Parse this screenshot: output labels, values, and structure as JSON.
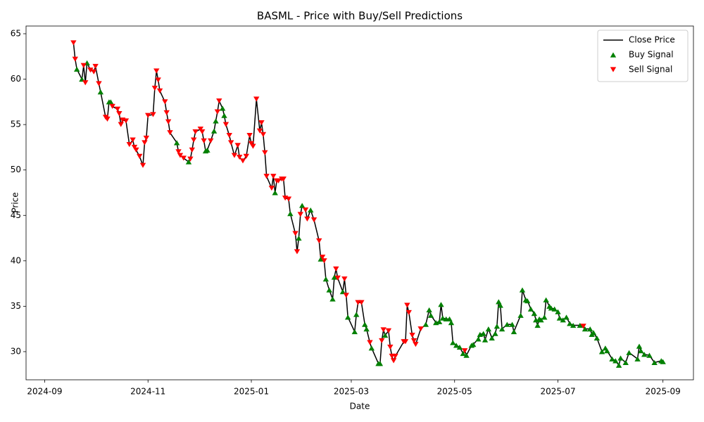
{
  "chart_data": {
    "type": "line",
    "title": "BASML - Price with Buy/Sell Predictions",
    "x_label": "Date",
    "y_label": "Price",
    "xlim": [
      19956,
      20350
    ],
    "xticks": [
      {
        "value": 19967,
        "label": "2024-09"
      },
      {
        "value": 20028,
        "label": "2024-11"
      },
      {
        "value": 20089,
        "label": "2025-01"
      },
      {
        "value": 20148,
        "label": "2025-03"
      },
      {
        "value": 20209,
        "label": "2025-05"
      },
      {
        "value": 20270,
        "label": "2025-07"
      },
      {
        "value": 20332,
        "label": "2025-09"
      }
    ],
    "ylim": [
      26.9,
      65.85
    ],
    "yticks": [
      30,
      35,
      40,
      45,
      50,
      55,
      60,
      65
    ],
    "grid": false,
    "legend": "upper right",
    "series": [
      {
        "name": "Close Price",
        "type": "line",
        "color": "#000000",
        "x": [
          19984,
          19985,
          19986,
          19989,
          19990,
          19991,
          19992,
          19994,
          19996,
          19997,
          19999,
          20000,
          20003,
          20004,
          20005,
          20006,
          20007,
          20010,
          20011,
          20012,
          20013,
          20015,
          20017,
          20019,
          20020,
          20021,
          20023,
          20025,
          20026,
          20027,
          20028,
          20031,
          20032,
          20033,
          20034,
          20035,
          20038,
          20039,
          20040,
          20041,
          20045,
          20046,
          20047,
          20049,
          20052,
          20053,
          20054,
          20055,
          20056,
          20059,
          20060,
          20061,
          20062,
          20063,
          20065,
          20067,
          20068,
          20069,
          20070,
          20072,
          20073,
          20074,
          20076,
          20077,
          20079,
          20081,
          20082,
          20084,
          20086,
          20088,
          20089,
          20090,
          20092,
          20094,
          20095,
          20096,
          20097,
          20098,
          20101,
          20102,
          20103,
          20104,
          20105,
          20107,
          20108,
          20109,
          20111,
          20112,
          20115,
          20116,
          20117,
          20118,
          20119,
          20121,
          20122,
          20124,
          20126,
          20129,
          20130,
          20131,
          20132,
          20133,
          20135,
          20137,
          20138,
          20139,
          20140,
          20143,
          20144,
          20145,
          20146,
          20150,
          20151,
          20152,
          20154,
          20156,
          20157,
          20159,
          20160,
          20164,
          20165,
          20166,
          20167,
          20168,
          20170,
          20171,
          20172,
          20173,
          20174,
          20179,
          20180,
          20181,
          20182,
          20184,
          20185,
          20186,
          20189,
          20192,
          20194,
          20195,
          20198,
          20200,
          20201,
          20202,
          20204,
          20206,
          20207,
          20208,
          20210,
          20212,
          20214,
          20215,
          20216,
          20219,
          20220,
          20223,
          20224,
          20226,
          20227,
          20229,
          20231,
          20233,
          20234,
          20235,
          20236,
          20237,
          20240,
          20243,
          20244,
          20248,
          20249,
          20251,
          20252,
          20254,
          20256,
          20257,
          20258,
          20259,
          20260,
          20262,
          20263,
          20265,
          20266,
          20268,
          20270,
          20271,
          20273,
          20275,
          20277,
          20279,
          20283,
          20285,
          20286,
          20289,
          20290,
          20291,
          20293,
          20296,
          20298,
          20299,
          20302,
          20304,
          20306,
          20307,
          20310,
          20312,
          20317,
          20318,
          20319,
          20321,
          20324,
          20327,
          20331,
          20332
        ],
        "values": [
          64.0,
          62.2,
          61.1,
          60.0,
          61.5,
          59.6,
          61.8,
          61.0,
          60.8,
          61.4,
          59.5,
          58.6,
          55.8,
          55.6,
          57.5,
          57.5,
          57.0,
          56.7,
          56.2,
          55.0,
          55.5,
          55.4,
          52.8,
          53.3,
          52.5,
          52.2,
          51.5,
          50.5,
          53.0,
          53.5,
          56.0,
          56.1,
          59.0,
          60.9,
          59.9,
          58.7,
          57.5,
          56.3,
          55.3,
          54.1,
          53.0,
          52.0,
          51.6,
          51.3,
          50.9,
          51.2,
          52.2,
          53.3,
          54.2,
          54.5,
          54.2,
          53.2,
          52.1,
          52.2,
          53.2,
          54.3,
          55.4,
          56.4,
          57.6,
          56.8,
          56.0,
          55.0,
          53.8,
          53.0,
          51.6,
          52.7,
          51.4,
          51.0,
          51.5,
          53.8,
          52.9,
          52.6,
          57.8,
          54.3,
          55.2,
          53.9,
          51.9,
          49.3,
          48.0,
          49.3,
          47.5,
          48.8,
          48.8,
          49.0,
          49.0,
          46.9,
          46.8,
          45.2,
          43.0,
          41.0,
          42.5,
          45.1,
          46.1,
          45.6,
          44.6,
          45.6,
          44.5,
          42.2,
          40.2,
          40.4,
          40.0,
          38.0,
          36.8,
          35.8,
          38.2,
          39.1,
          38.1,
          36.6,
          38.0,
          36.2,
          33.8,
          32.2,
          34.1,
          35.4,
          35.4,
          33.0,
          32.5,
          31.0,
          30.4,
          28.7,
          28.7,
          31.2,
          32.4,
          31.8,
          32.3,
          30.5,
          29.5,
          29.0,
          29.5,
          31.1,
          31.1,
          35.1,
          34.3,
          31.8,
          31.2,
          30.8,
          32.5,
          33.0,
          34.6,
          34.0,
          33.2,
          33.3,
          35.2,
          33.7,
          33.6,
          33.6,
          33.2,
          31.0,
          30.7,
          30.5,
          29.8,
          30.1,
          29.6,
          30.7,
          30.8,
          31.4,
          31.9,
          32.0,
          31.3,
          32.5,
          31.5,
          32.0,
          32.8,
          35.5,
          35.1,
          32.5,
          33.0,
          33.0,
          32.2,
          34.0,
          36.8,
          35.7,
          35.6,
          34.7,
          34.2,
          33.5,
          32.9,
          33.6,
          33.5,
          33.8,
          35.7,
          35.0,
          34.8,
          34.7,
          34.4,
          33.7,
          33.5,
          33.8,
          33.1,
          32.9,
          32.9,
          32.8,
          32.5,
          32.5,
          31.9,
          32.1,
          31.5,
          30.0,
          30.4,
          30.1,
          29.2,
          29.0,
          28.5,
          29.3,
          28.8,
          29.9,
          29.2,
          30.6,
          30.1,
          29.7,
          29.6,
          28.8,
          29.0,
          28.9
        ]
      },
      {
        "name": "Buy Signal",
        "type": "scatter",
        "marker": "^",
        "color": "#008000",
        "x": [
          19986,
          19989,
          19992,
          20000,
          20005,
          20006,
          20045,
          20052,
          20062,
          20063,
          20067,
          20068,
          20072,
          20073,
          20103,
          20112,
          20117,
          20119,
          20124,
          20130,
          20133,
          20135,
          20137,
          20138,
          20143,
          20146,
          20150,
          20151,
          20156,
          20157,
          20160,
          20164,
          20165,
          20168,
          20192,
          20194,
          20195,
          20198,
          20200,
          20201,
          20202,
          20204,
          20206,
          20207,
          20208,
          20210,
          20212,
          20214,
          20216,
          20219,
          20220,
          20223,
          20224,
          20226,
          20227,
          20229,
          20231,
          20233,
          20234,
          20235,
          20236,
          20237,
          20240,
          20243,
          20244,
          20248,
          20249,
          20251,
          20252,
          20254,
          20256,
          20257,
          20258,
          20259,
          20260,
          20262,
          20263,
          20265,
          20266,
          20268,
          20270,
          20271,
          20273,
          20275,
          20277,
          20279,
          20283,
          20286,
          20289,
          20290,
          20291,
          20293,
          20296,
          20298,
          20299,
          20302,
          20304,
          20306,
          20307,
          20310,
          20312,
          20317,
          20318,
          20319,
          20321,
          20324,
          20327,
          20331,
          20332
        ],
        "values": [
          61.1,
          60.0,
          61.8,
          58.6,
          57.5,
          57.5,
          53.0,
          50.9,
          52.1,
          52.2,
          54.3,
          55.4,
          56.8,
          56.0,
          47.5,
          45.2,
          42.5,
          46.1,
          45.6,
          40.2,
          38.0,
          36.8,
          35.8,
          38.2,
          36.6,
          33.8,
          32.2,
          34.1,
          33.0,
          32.5,
          30.4,
          28.7,
          28.7,
          31.8,
          33.0,
          34.6,
          34.0,
          33.2,
          33.3,
          35.2,
          33.7,
          33.6,
          33.6,
          33.2,
          31.0,
          30.7,
          30.5,
          29.8,
          29.6,
          30.7,
          30.8,
          31.4,
          31.9,
          32.0,
          31.3,
          32.5,
          31.5,
          32.0,
          32.8,
          35.5,
          35.1,
          32.5,
          33.0,
          33.0,
          32.2,
          34.0,
          36.8,
          35.7,
          35.6,
          34.7,
          34.2,
          33.5,
          32.9,
          33.6,
          33.5,
          33.8,
          35.7,
          35.0,
          34.8,
          34.7,
          34.4,
          33.7,
          33.5,
          33.8,
          33.1,
          32.9,
          32.9,
          32.5,
          32.5,
          31.9,
          32.1,
          31.5,
          30.0,
          30.4,
          30.1,
          29.2,
          29.0,
          28.5,
          29.3,
          28.8,
          29.9,
          29.2,
          30.6,
          30.1,
          29.7,
          29.6,
          28.8,
          29.0,
          28.9
        ]
      },
      {
        "name": "Sell Signal",
        "type": "scatter",
        "marker": "v",
        "color": "#ff0000",
        "x": [
          19984,
          19985,
          19990,
          19991,
          19994,
          19996,
          19997,
          19999,
          20003,
          20004,
          20007,
          20010,
          20011,
          20012,
          20013,
          20015,
          20017,
          20019,
          20020,
          20021,
          20023,
          20025,
          20026,
          20027,
          20028,
          20031,
          20032,
          20033,
          20034,
          20035,
          20038,
          20039,
          20040,
          20041,
          20046,
          20047,
          20049,
          20053,
          20054,
          20055,
          20056,
          20059,
          20060,
          20061,
          20065,
          20069,
          20070,
          20074,
          20076,
          20077,
          20079,
          20081,
          20082,
          20084,
          20086,
          20088,
          20089,
          20090,
          20092,
          20094,
          20095,
          20096,
          20097,
          20098,
          20101,
          20102,
          20104,
          20105,
          20107,
          20108,
          20109,
          20111,
          20115,
          20116,
          20118,
          20121,
          20122,
          20126,
          20129,
          20131,
          20132,
          20139,
          20140,
          20144,
          20145,
          20152,
          20154,
          20159,
          20166,
          20167,
          20170,
          20171,
          20172,
          20173,
          20174,
          20179,
          20180,
          20181,
          20182,
          20184,
          20185,
          20186,
          20189,
          20215,
          20285
        ],
        "values": [
          64.0,
          62.2,
          61.5,
          59.6,
          61.0,
          60.8,
          61.4,
          59.5,
          55.8,
          55.6,
          57.0,
          56.7,
          56.2,
          55.0,
          55.5,
          55.4,
          52.8,
          53.3,
          52.5,
          52.2,
          51.5,
          50.5,
          53.0,
          53.5,
          56.0,
          56.1,
          59.0,
          60.9,
          59.9,
          58.7,
          57.5,
          56.3,
          55.3,
          54.1,
          52.0,
          51.6,
          51.3,
          51.2,
          52.2,
          53.3,
          54.2,
          54.5,
          54.2,
          53.2,
          53.2,
          56.4,
          57.6,
          55.0,
          53.8,
          53.0,
          51.6,
          52.7,
          51.4,
          51.0,
          51.5,
          53.8,
          52.9,
          52.6,
          57.8,
          54.3,
          55.2,
          53.9,
          51.9,
          49.3,
          48.0,
          49.3,
          48.8,
          48.8,
          49.0,
          49.0,
          46.9,
          46.8,
          43.0,
          41.0,
          45.1,
          45.6,
          44.6,
          44.5,
          42.2,
          40.4,
          40.0,
          39.1,
          38.1,
          38.0,
          36.2,
          35.4,
          35.4,
          31.0,
          31.2,
          32.4,
          32.3,
          30.5,
          29.5,
          29.0,
          29.5,
          31.1,
          31.1,
          35.1,
          34.3,
          31.8,
          31.2,
          30.8,
          32.5,
          30.1,
          32.8
        ]
      }
    ]
  }
}
